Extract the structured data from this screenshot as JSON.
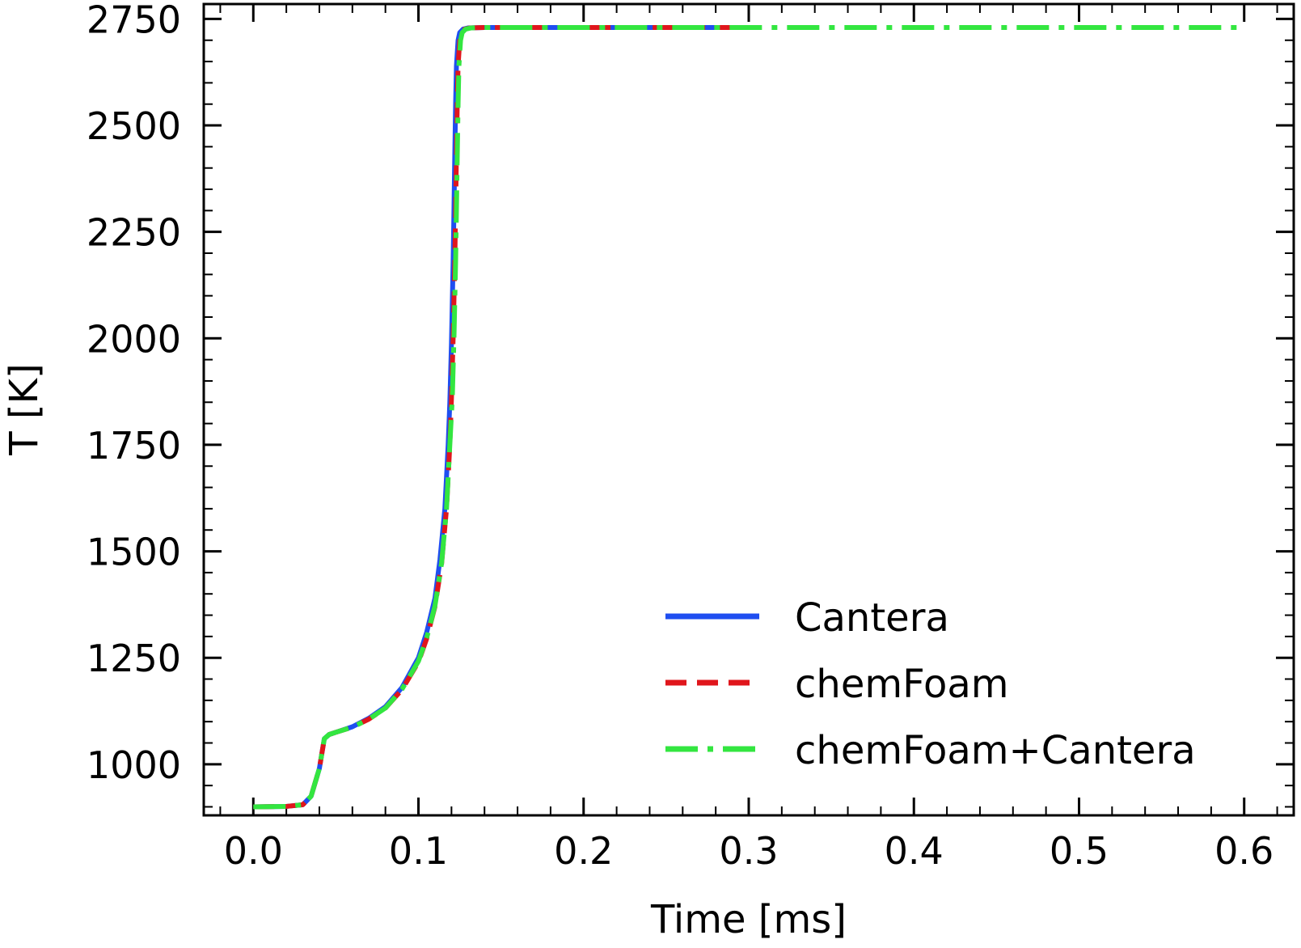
{
  "chart_data": {
    "type": "line",
    "title": "",
    "xlabel": "Time [ms]",
    "ylabel": "T [K]",
    "xlim": [
      -0.03,
      0.63
    ],
    "ylim": [
      880,
      2785
    ],
    "xticks": [
      0.0,
      0.1,
      0.2,
      0.3,
      0.4,
      0.5,
      0.6
    ],
    "xtick_labels": [
      "0.0",
      "0.1",
      "0.2",
      "0.3",
      "0.4",
      "0.5",
      "0.6"
    ],
    "yticks": [
      1000,
      1250,
      1500,
      1750,
      2000,
      2250,
      2500,
      2750
    ],
    "ytick_labels": [
      "1000",
      "1250",
      "1500",
      "1750",
      "2000",
      "2250",
      "2500",
      "2750"
    ],
    "grid": false,
    "legend_position": "bottom-right",
    "series": [
      {
        "name": "Cantera",
        "color": "#1f4ef0",
        "style": "solid",
        "x": [
          0.0,
          0.02,
          0.03,
          0.035,
          0.04,
          0.043,
          0.046,
          0.05,
          0.06,
          0.07,
          0.08,
          0.09,
          0.1,
          0.105,
          0.11,
          0.113,
          0.116,
          0.118,
          0.119,
          0.12,
          0.121,
          0.1215,
          0.122,
          0.1225,
          0.123,
          0.124,
          0.125,
          0.127,
          0.13,
          0.14,
          0.15,
          0.2,
          0.25,
          0.3
        ],
        "y": [
          900,
          901,
          905,
          925,
          990,
          1060,
          1070,
          1075,
          1088,
          1108,
          1135,
          1180,
          1250,
          1310,
          1390,
          1480,
          1600,
          1750,
          1850,
          1990,
          2180,
          2300,
          2430,
          2550,
          2640,
          2700,
          2718,
          2726,
          2729,
          2730,
          2730,
          2730,
          2730,
          2730
        ]
      },
      {
        "name": "chemFoam",
        "color": "#e0161c",
        "style": "dashed",
        "x": [
          0.0,
          0.02,
          0.03,
          0.035,
          0.04,
          0.043,
          0.046,
          0.05,
          0.06,
          0.07,
          0.08,
          0.09,
          0.1,
          0.105,
          0.11,
          0.114,
          0.117,
          0.119,
          0.12,
          0.121,
          0.122,
          0.1225,
          0.123,
          0.1235,
          0.124,
          0.125,
          0.126,
          0.128,
          0.131,
          0.14,
          0.15,
          0.2,
          0.25,
          0.3
        ],
        "y": [
          900,
          901,
          905,
          925,
          990,
          1060,
          1070,
          1075,
          1087,
          1106,
          1132,
          1175,
          1240,
          1295,
          1370,
          1470,
          1600,
          1750,
          1860,
          2000,
          2180,
          2300,
          2430,
          2550,
          2640,
          2700,
          2718,
          2726,
          2729,
          2730,
          2730,
          2730,
          2730,
          2730
        ]
      },
      {
        "name": "chemFoam+Cantera",
        "color": "#33e640",
        "style": "dashdot",
        "x": [
          0.0,
          0.02,
          0.03,
          0.035,
          0.04,
          0.043,
          0.046,
          0.05,
          0.06,
          0.07,
          0.08,
          0.09,
          0.1,
          0.105,
          0.11,
          0.114,
          0.117,
          0.119,
          0.1205,
          0.1215,
          0.1225,
          0.123,
          0.1235,
          0.124,
          0.1245,
          0.1255,
          0.1265,
          0.1285,
          0.132,
          0.14,
          0.15,
          0.2,
          0.3,
          0.4,
          0.5,
          0.6
        ],
        "y": [
          900,
          901,
          905,
          925,
          990,
          1060,
          1070,
          1075,
          1087,
          1106,
          1132,
          1176,
          1242,
          1297,
          1372,
          1472,
          1600,
          1750,
          1860,
          2000,
          2180,
          2300,
          2430,
          2550,
          2640,
          2700,
          2718,
          2726,
          2729,
          2730,
          2730,
          2730,
          2730,
          2730,
          2730,
          2730
        ]
      }
    ]
  }
}
